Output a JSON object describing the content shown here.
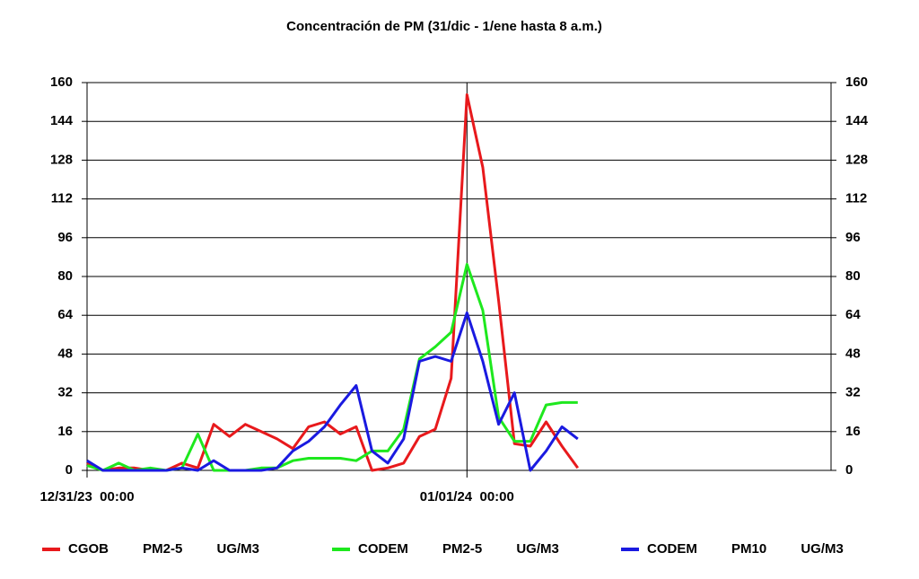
{
  "chart_data": {
    "type": "line",
    "title": "Concentración de PM (31/dic - 1/ene hasta 8 a.m.)",
    "x": [
      0,
      1,
      2,
      3,
      4,
      5,
      6,
      7,
      8,
      9,
      10,
      11,
      12,
      13,
      14,
      15,
      16,
      17,
      18,
      19,
      20,
      21,
      22,
      23,
      24,
      25,
      26,
      27,
      28,
      29,
      30,
      31
    ],
    "xlim": [
      0,
      47
    ],
    "xticks": [
      {
        "value": 0,
        "label": "12/31/23  00:00"
      },
      {
        "value": 24,
        "label": "01/01/24  00:00"
      }
    ],
    "ylim": [
      0,
      160
    ],
    "yticks": [
      0,
      16,
      32,
      48,
      64,
      80,
      96,
      112,
      128,
      144,
      160
    ],
    "y2lim": [
      0,
      160
    ],
    "y2ticks": [
      0,
      16,
      32,
      48,
      64,
      80,
      96,
      112,
      128,
      144,
      160
    ],
    "grid": true,
    "legend": "bottom",
    "series": [
      {
        "name": "CGOB PM2-5 UG/M3",
        "color": "#e8191c",
        "values": [
          3,
          0,
          1,
          1,
          0,
          0,
          3,
          1,
          19,
          14,
          19,
          16,
          13,
          9,
          18,
          20,
          15,
          18,
          0,
          1,
          3,
          14,
          17,
          38,
          155,
          125,
          70,
          11,
          10,
          20,
          10,
          1
        ]
      },
      {
        "name": "CODEM PM2-5 UG/M3",
        "color": "#1ee81e",
        "values": [
          2,
          0,
          3,
          0,
          1,
          0,
          1,
          15,
          0,
          0,
          0,
          1,
          1,
          4,
          5,
          5,
          5,
          4,
          8,
          8,
          17,
          46,
          51,
          57,
          85,
          66,
          22,
          12,
          12,
          27,
          28,
          28
        ]
      },
      {
        "name": "CODEM PM10 UG/M3",
        "color": "#1a1ae0",
        "values": [
          4,
          0,
          0,
          0,
          0,
          0,
          1,
          0,
          4,
          0,
          0,
          0,
          1,
          8,
          12,
          18,
          27,
          35,
          8,
          3,
          13,
          45,
          47,
          45,
          65,
          45,
          19,
          32,
          0,
          8,
          18,
          13
        ]
      }
    ]
  }
}
